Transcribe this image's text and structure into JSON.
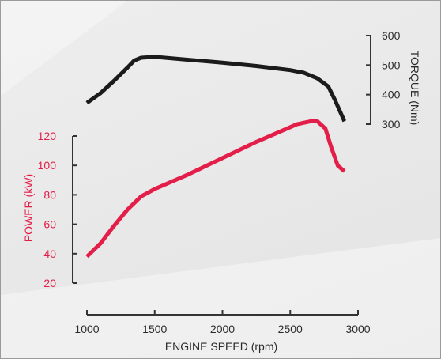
{
  "chart_data": {
    "type": "line",
    "x": {
      "label": "ENGINE SPEED (rpm)",
      "range": [
        1000,
        3000
      ],
      "ticks": [
        1000,
        1500,
        2000,
        2500,
        3000
      ]
    },
    "torque_axis": {
      "label": "TORQUE (Nm)",
      "range": [
        300,
        600
      ],
      "ticks": [
        300,
        400,
        500,
        600
      ],
      "position": "right"
    },
    "power_axis": {
      "label": "POWER (kW)",
      "range": [
        20,
        120
      ],
      "ticks": [
        20,
        40,
        60,
        80,
        100,
        120
      ],
      "position": "left"
    },
    "series": [
      {
        "axis": "torque",
        "color": "#1b1b1b",
        "points": [
          [
            1000,
            372
          ],
          [
            1100,
            405
          ],
          [
            1200,
            447
          ],
          [
            1300,
            492
          ],
          [
            1350,
            516
          ],
          [
            1400,
            525
          ],
          [
            1500,
            528
          ],
          [
            1750,
            518
          ],
          [
            2000,
            508
          ],
          [
            2250,
            497
          ],
          [
            2500,
            483
          ],
          [
            2600,
            474
          ],
          [
            2700,
            455
          ],
          [
            2780,
            428
          ],
          [
            2830,
            382
          ],
          [
            2900,
            310
          ]
        ]
      },
      {
        "axis": "power",
        "color": "#e31e48",
        "points": [
          [
            1000,
            38
          ],
          [
            1100,
            47
          ],
          [
            1200,
            59
          ],
          [
            1300,
            70
          ],
          [
            1400,
            79
          ],
          [
            1500,
            84
          ],
          [
            1750,
            94
          ],
          [
            2000,
            105
          ],
          [
            2250,
            116
          ],
          [
            2450,
            124
          ],
          [
            2550,
            128
          ],
          [
            2650,
            130
          ],
          [
            2700,
            130
          ],
          [
            2760,
            125
          ],
          [
            2800,
            113
          ],
          [
            2850,
            100
          ],
          [
            2900,
            96
          ]
        ]
      }
    ]
  }
}
